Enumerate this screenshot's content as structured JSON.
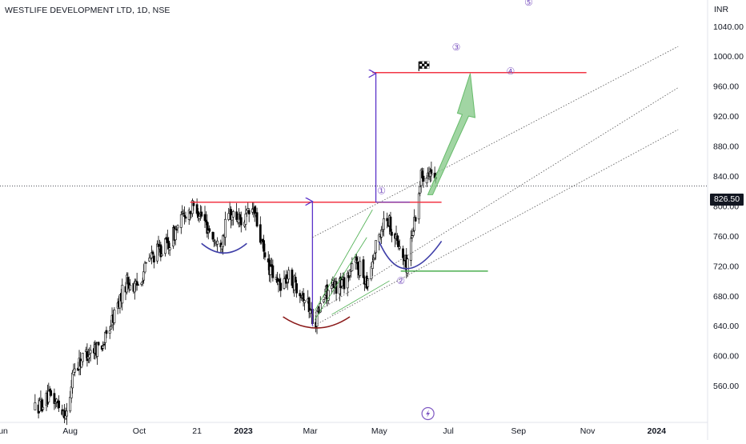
{
  "chart_data": {
    "type": "candlestick",
    "title": "WESTLIFE DEVELOPMENT LTD, 1D, NSE",
    "currency_label": "INR",
    "last_price_label": "826.50",
    "last_price": 826.5,
    "y_ticks": [
      560,
      600,
      640,
      680,
      720,
      760,
      800,
      840,
      880,
      920,
      960,
      1000,
      1040
    ],
    "y_tick_labels": [
      "560.00",
      "600.00",
      "640.00",
      "680.00",
      "720.00",
      "760.00",
      "800.00",
      "840.00",
      "880.00",
      "920.00",
      "960.00",
      "1000.00",
      "1040.00"
    ],
    "ylim": [
      511,
      1075
    ],
    "x_tick_labels": [
      "Jun",
      "Aug",
      "Oct",
      "21",
      "2023",
      "Mar",
      "May",
      "Jul",
      "Sep",
      "Nov",
      "2024"
    ],
    "x_tick_dates": [
      "2022-06-01",
      "2022-08-01",
      "2022-10-01",
      "2022-11-21",
      "2023-01-01",
      "2023-03-01",
      "2023-05-01",
      "2023-07-01",
      "2023-09-01",
      "2023-11-01",
      "2024-01-01"
    ],
    "xlim": [
      "2022-05-31",
      "2024-02-15"
    ],
    "price_path": [
      [
        "2022-07-01",
        530
      ],
      [
        "2022-07-15",
        545
      ],
      [
        "2022-07-31",
        520
      ],
      [
        "2022-08-03",
        580
      ],
      [
        "2022-08-15",
        603
      ],
      [
        "2022-08-31",
        618
      ],
      [
        "2022-09-10",
        660
      ],
      [
        "2022-09-20",
        700
      ],
      [
        "2022-09-28",
        690
      ],
      [
        "2022-10-10",
        730
      ],
      [
        "2022-10-28",
        752
      ],
      [
        "2022-11-10",
        790
      ],
      [
        "2022-11-20",
        800
      ],
      [
        "2022-12-01",
        770
      ],
      [
        "2022-12-10",
        745
      ],
      [
        "2022-12-20",
        790
      ],
      [
        "2022-12-31",
        780
      ],
      [
        "2023-01-10",
        795
      ],
      [
        "2023-01-20",
        730
      ],
      [
        "2023-01-31",
        695
      ],
      [
        "2023-02-10",
        705
      ],
      [
        "2023-02-20",
        690
      ],
      [
        "2023-02-28",
        665
      ],
      [
        "2023-03-05",
        645
      ],
      [
        "2023-03-15",
        685
      ],
      [
        "2023-03-31",
        700
      ],
      [
        "2023-04-10",
        725
      ],
      [
        "2023-04-20",
        700
      ],
      [
        "2023-04-30",
        755
      ],
      [
        "2023-05-07",
        790
      ],
      [
        "2023-05-15",
        760
      ],
      [
        "2023-05-25",
        720
      ],
      [
        "2023-06-01",
        780
      ],
      [
        "2023-06-07",
        840
      ],
      [
        "2023-06-14",
        850
      ],
      [
        "2023-06-20",
        826.5
      ]
    ],
    "drawings": {
      "resistance_level": 805,
      "target_level": 978,
      "measured_move_arrow": {
        "from": 640,
        "to": 805
      },
      "projection_arrow": {
        "from": 805,
        "to": 978
      },
      "pattern": "inverse head and shoulders",
      "markers": [
        "①",
        "②",
        "③",
        "④",
        "⑤"
      ],
      "target_icon": "checkered-flag-icon",
      "alert_icon": "lightning-icon"
    },
    "colors": {
      "bull": "#ffffff",
      "bear": "#000000",
      "resistance": "#f23645",
      "support": "#4caf50",
      "shoulder_curve": "#3f3fa8",
      "head_curve": "#8b1a1a",
      "arrow": "#5b33c9",
      "forecast_arrow": "#81c784",
      "marker": "#7e57c2"
    }
  }
}
